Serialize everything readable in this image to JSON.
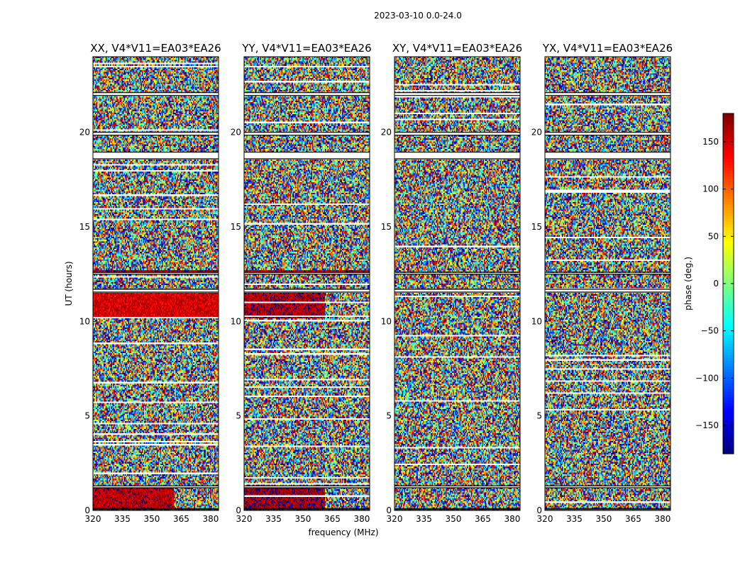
{
  "figure": {
    "suptitle": "2023-03-10 0.0-24.0",
    "xlabel": "frequency (MHz)",
    "ylabel": "UT (hours)",
    "colorbar_label": "phase (deg.)"
  },
  "chart_data": {
    "type": "heatmap",
    "colormap": "jet",
    "title": "2023-03-10 0.0-24.0",
    "xlabel": "frequency (MHz)",
    "ylabel": "UT (hours)",
    "xlim": [
      320,
      384
    ],
    "ylim": [
      0,
      24
    ],
    "xticks": [
      320,
      335,
      350,
      365,
      380
    ],
    "yticks": [
      0,
      5,
      10,
      15,
      20
    ],
    "zlim": [
      -180,
      180
    ],
    "zticks": [
      -150,
      -100,
      -50,
      0,
      50,
      100,
      150
    ],
    "colorbar_label": "phase (deg.)",
    "value_description": "visibility phase in degrees, mostly noise-like across frequency and time",
    "gaps_hours": [
      [
        18.6,
        18.95
      ],
      [
        21.95,
        22.1
      ],
      [
        19.85,
        20.0
      ],
      [
        0.05,
        0.1
      ],
      [
        1.2,
        1.3
      ],
      [
        11.55,
        11.7
      ],
      [
        12.5,
        12.6
      ]
    ],
    "panels": [
      {
        "title": "XX, V4*V11=EA03*EA26",
        "coherent_bands": [
          {
            "t": [
              10.15,
              11.55
            ],
            "f": [
              320,
              384
            ],
            "phase": 150
          },
          {
            "t": [
              0.05,
              1.2
            ],
            "f": [
              320,
              361
            ],
            "phase": 160
          },
          {
            "t": [
              12.55,
              12.7
            ],
            "f": [
              320,
              384
            ],
            "phase": 165
          }
        ]
      },
      {
        "title": "YY, V4*V11=EA03*EA26",
        "coherent_bands": [
          {
            "t": [
              10.15,
              11.55
            ],
            "f": [
              320,
              361
            ],
            "phase": 165
          },
          {
            "t": [
              0.05,
              1.2
            ],
            "f": [
              320,
              361
            ],
            "phase": 170
          },
          {
            "t": [
              12.55,
              12.7
            ],
            "f": [
              320,
              384
            ],
            "phase": 160
          }
        ]
      },
      {
        "title": "XY, V4*V11=EA03*EA26",
        "coherent_bands": []
      },
      {
        "title": "YX, V4*V11=EA03*EA26",
        "coherent_bands": []
      }
    ]
  }
}
